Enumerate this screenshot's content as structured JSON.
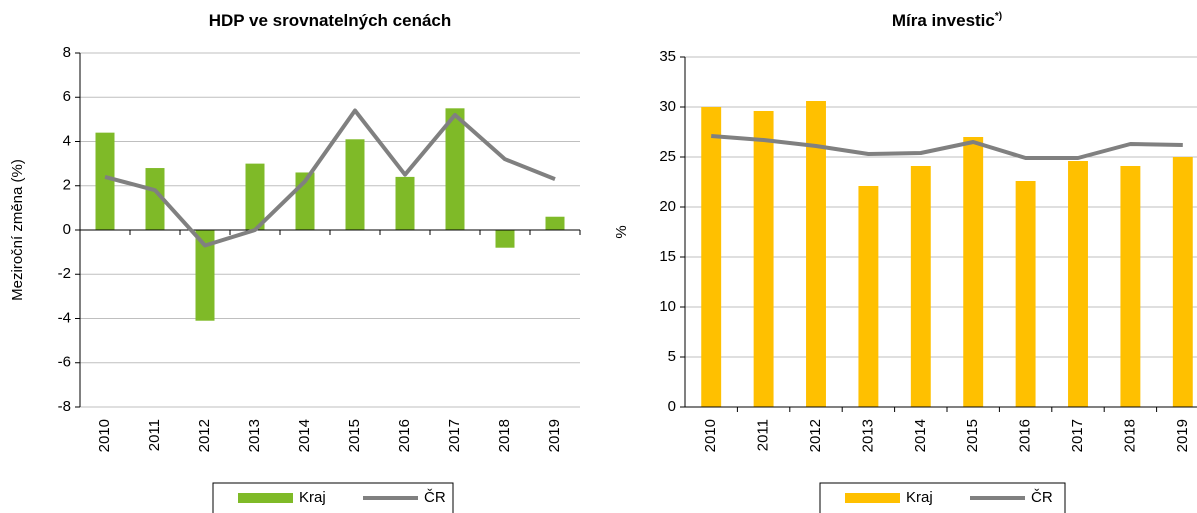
{
  "chart_data": [
    {
      "type": "bar_line",
      "title": "HDP ve srovnatelných cenách",
      "y_label": "Meziroční změna (%)",
      "categories": [
        "2010",
        "2011",
        "2012",
        "2013",
        "2014",
        "2015",
        "2016",
        "2017",
        "2018",
        "2019"
      ],
      "series": [
        {
          "name": "Kraj",
          "type": "bar",
          "color": "#7fba28",
          "values": [
            4.4,
            2.8,
            -4.1,
            3.0,
            2.6,
            4.1,
            2.4,
            5.5,
            -0.8,
            0.6
          ]
        },
        {
          "name": "ČR",
          "type": "line",
          "color": "#808080",
          "values": [
            2.4,
            1.8,
            -0.7,
            0.0,
            2.2,
            5.4,
            2.5,
            5.2,
            3.2,
            2.3
          ]
        }
      ],
      "ylim": [
        -8,
        8
      ],
      "yticks": [
        -8,
        -6,
        -4,
        -2,
        0,
        2,
        4,
        6,
        8
      ],
      "grid": true,
      "legend": "bottom"
    },
    {
      "type": "bar_line",
      "title": "Míra investic",
      "title_sup": "*)",
      "y_label": "%",
      "categories": [
        "2010",
        "2011",
        "2012",
        "2013",
        "2014",
        "2015",
        "2016",
        "2017",
        "2018",
        "2019"
      ],
      "series": [
        {
          "name": "Kraj",
          "type": "bar",
          "color": "#ffc000",
          "values": [
            30.0,
            29.6,
            30.6,
            22.1,
            24.1,
            27.0,
            22.6,
            24.6,
            24.1,
            25.0
          ]
        },
        {
          "name": "ČR",
          "type": "line",
          "color": "#808080",
          "values": [
            27.1,
            26.7,
            26.1,
            25.3,
            25.4,
            26.5,
            24.9,
            24.9,
            26.3,
            26.2
          ]
        }
      ],
      "ylim": [
        0,
        35
      ],
      "yticks": [
        0,
        5,
        10,
        15,
        20,
        25,
        30,
        35
      ],
      "grid": true,
      "legend": "bottom"
    }
  ]
}
